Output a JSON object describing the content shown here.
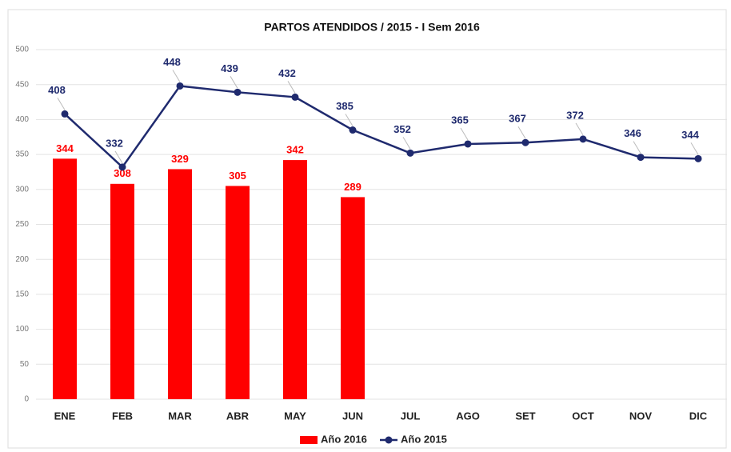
{
  "chart_data": {
    "type": "bar",
    "title": "PARTOS ATENDIDOS / 2015 - I Sem 2016",
    "categories": [
      "ENE",
      "FEB",
      "MAR",
      "ABR",
      "MAY",
      "JUN",
      "JUL",
      "AGO",
      "SET",
      "OCT",
      "NOV",
      "DIC"
    ],
    "series": [
      {
        "name": "Año 2016",
        "type": "bar",
        "color": "#ff0000",
        "values": [
          344,
          308,
          329,
          305,
          342,
          289,
          null,
          null,
          null,
          null,
          null,
          null
        ]
      },
      {
        "name": "Año 2015",
        "type": "line",
        "color": "#1f2a6e",
        "values": [
          408,
          332,
          448,
          439,
          432,
          385,
          352,
          365,
          367,
          372,
          346,
          344
        ]
      }
    ],
    "ylim": [
      0,
      500
    ],
    "yticks": [
      0,
      50,
      100,
      150,
      200,
      250,
      300,
      350,
      400,
      450,
      500
    ],
    "grid": true,
    "legend": "bottom"
  }
}
